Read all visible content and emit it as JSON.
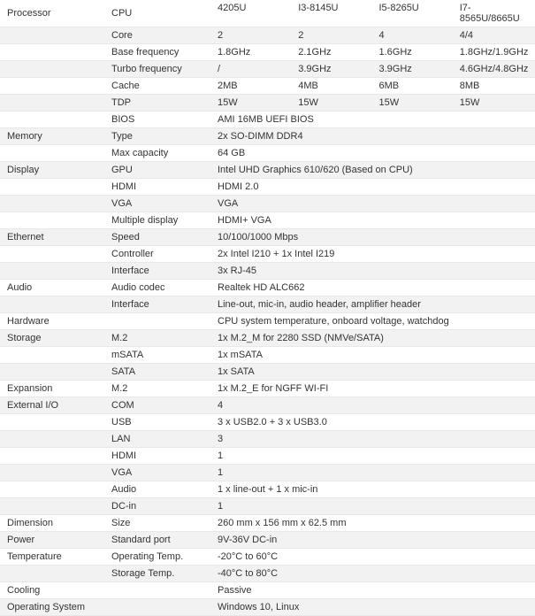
{
  "cpu_columns": [
    "4205U",
    "I3-8145U",
    "I5-8265U",
    "I7-8565U/8665U"
  ],
  "sections": [
    {
      "category": "Processor",
      "rows": [
        {
          "attr": "CPU",
          "multi": true,
          "values": [
            "4205U",
            "I3-8145U",
            "I5-8265U",
            "I7-8565U/8665U"
          ]
        },
        {
          "attr": "Core",
          "multi": true,
          "values": [
            "2",
            "2",
            "4",
            "4/4"
          ]
        },
        {
          "attr": "Base frequency",
          "multi": true,
          "values": [
            "1.8GHz",
            "2.1GHz",
            "1.6GHz",
            "1.8GHz/1.9GHz"
          ]
        },
        {
          "attr": "Turbo frequency",
          "multi": true,
          "values": [
            "/",
            "3.9GHz",
            "3.9GHz",
            "4.6GHz/4.8GHz"
          ]
        },
        {
          "attr": "Cache",
          "multi": true,
          "values": [
            "2MB",
            "4MB",
            "6MB",
            "8MB"
          ]
        },
        {
          "attr": "TDP",
          "multi": true,
          "values": [
            "15W",
            "15W",
            "15W",
            "15W"
          ]
        },
        {
          "attr": "BIOS",
          "value": "AMI 16MB UEFI BIOS"
        }
      ]
    },
    {
      "category": "Memory",
      "rows": [
        {
          "attr": "Type",
          "value": "2x SO-DIMM DDR4"
        },
        {
          "attr": "Max capacity",
          "value": "64 GB"
        }
      ]
    },
    {
      "category": "Display",
      "rows": [
        {
          "attr": "GPU",
          "value": "Intel UHD Graphics 610/620 (Based on CPU)"
        },
        {
          "attr": "HDMI",
          "value": "HDMI 2.0"
        },
        {
          "attr": "VGA",
          "value": "VGA"
        },
        {
          "attr": "Multiple display",
          "value": "HDMI+ VGA"
        }
      ]
    },
    {
      "category": "Ethernet",
      "rows": [
        {
          "attr": "Speed",
          "value": "10/100/1000 Mbps"
        },
        {
          "attr": "Controller",
          "value": "2x Intel I210 + 1x Intel I219"
        },
        {
          "attr": "Interface",
          "value": "3x RJ-45"
        }
      ]
    },
    {
      "category": "Audio",
      "rows": [
        {
          "attr": "Audio codec",
          "value": "Realtek HD ALC662"
        },
        {
          "attr": "Interface",
          "value": "Line-out, mic-in, audio header, amplifier header"
        }
      ]
    },
    {
      "category": "Hardware",
      "rows": [
        {
          "attr": "",
          "value": "CPU system temperature, onboard voltage, watchdog"
        }
      ]
    },
    {
      "category": "Storage",
      "rows": [
        {
          "attr": "M.2",
          "value": "1x M.2_M for 2280 SSD (NMVe/SATA)"
        },
        {
          "attr": "mSATA",
          "value": "1x mSATA"
        },
        {
          "attr": "SATA",
          "value": "1x SATA"
        }
      ]
    },
    {
      "category": "Expansion",
      "rows": [
        {
          "attr": "M.2",
          "value": "1x M.2_E for NGFF WI-FI"
        }
      ]
    },
    {
      "category": "External I/O",
      "rows": [
        {
          "attr": "COM",
          "value": "4"
        },
        {
          "attr": "USB",
          "value": "3 x USB2.0 + 3 x USB3.0"
        },
        {
          "attr": "LAN",
          "value": "3"
        },
        {
          "attr": "HDMI",
          "value": "1"
        },
        {
          "attr": "VGA",
          "value": "1"
        },
        {
          "attr": "Audio",
          "value": "1 x line-out + 1 x mic-in"
        },
        {
          "attr": "DC-in",
          "value": "1"
        }
      ]
    },
    {
      "category": "Dimension",
      "rows": [
        {
          "attr": "Size",
          "value": "260 mm x 156 mm x 62.5 mm"
        }
      ]
    },
    {
      "category": "Power",
      "rows": [
        {
          "attr": "Standard port",
          "value": "9V-36V DC-in"
        }
      ]
    },
    {
      "category": "Temperature",
      "rows": [
        {
          "attr": "Operating Temp.",
          "value": "-20°C to 60°C"
        },
        {
          "attr": "Storage Temp.",
          "value": "-40°C to 80°C"
        }
      ]
    },
    {
      "category": "Cooling",
      "rows": [
        {
          "attr": "",
          "value": "Passive"
        }
      ]
    },
    {
      "category": "Operating System",
      "rows": [
        {
          "attr": "",
          "value": "Windows 10, Linux"
        }
      ]
    }
  ]
}
